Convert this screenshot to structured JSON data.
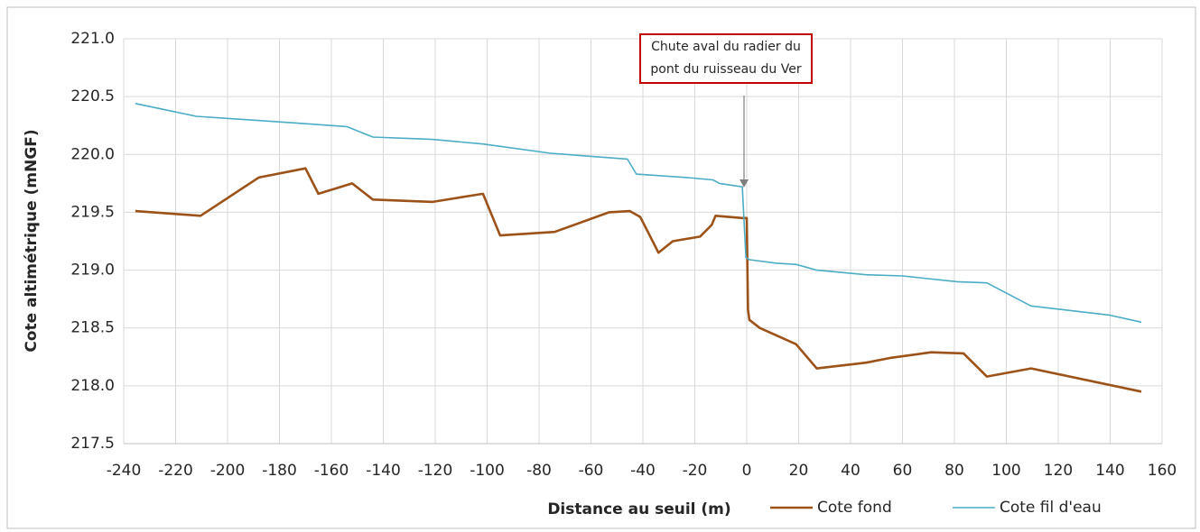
{
  "chart_data": {
    "type": "line",
    "y_label": "Cote altimétrique (mNGF)",
    "x_label": "Distance au seuil (m)",
    "annotation": "Chute aval du radier du pont du ruisseau du Ver",
    "xlim": [
      -240,
      160
    ],
    "xticks": [
      -240,
      -220,
      -200,
      -180,
      -160,
      -140,
      -120,
      -100,
      -80,
      -60,
      -40,
      -20,
      0,
      20,
      40,
      60,
      80,
      100,
      120,
      140,
      160
    ],
    "ylim": [
      217.5,
      221.0
    ],
    "yticks": [
      217.5,
      {
        "value": 218,
        "label": "218.0"
      },
      218.5,
      {
        "value": 219,
        "label": "219.0"
      },
      219.5,
      {
        "value": 220,
        "label": "220.0"
      },
      220.5,
      {
        "value": 221,
        "label": "221.0"
      }
    ],
    "grid": true,
    "legend": "bottom",
    "series": [
      {
        "name": "Cote fond",
        "color": "#9c5219",
        "x": [
          -235.5,
          -210.4,
          -188,
          -170,
          -165,
          -152,
          -144,
          -121,
          -101.6,
          -95,
          -74,
          -53,
          -45,
          -41,
          -34,
          -28.5,
          -18,
          -13.5,
          -12,
          -1.7,
          0,
          0.5,
          1,
          5,
          19,
          27,
          46,
          55,
          71,
          83.5,
          92.5,
          109.5,
          152
        ],
        "values": [
          219.51,
          219.47,
          219.8,
          219.88,
          219.66,
          219.75,
          219.61,
          219.59,
          219.66,
          219.3,
          219.33,
          219.5,
          219.51,
          219.46,
          219.15,
          219.25,
          219.29,
          219.39,
          219.47,
          219.45,
          219.45,
          218.66,
          218.57,
          218.5,
          218.36,
          218.15,
          218.2,
          218.24,
          218.29,
          218.28,
          218.08,
          218.15,
          217.95
        ]
      },
      {
        "name": "Cote fil d'eau",
        "color": "#4bacc6",
        "x": [
          -235.5,
          -212,
          -173,
          -154,
          -144,
          -121,
          -101.6,
          -75.5,
          -46,
          -42.5,
          -23,
          -13,
          -10.5,
          -1.7,
          -0.3,
          1,
          11.5,
          19,
          27,
          46,
          60,
          81,
          92.5,
          109.5,
          140,
          152
        ],
        "values": [
          220.44,
          220.33,
          220.27,
          220.24,
          220.15,
          220.13,
          220.09,
          220.01,
          219.96,
          219.83,
          219.8,
          219.78,
          219.75,
          219.72,
          219.11,
          219.09,
          219.06,
          219.05,
          219.0,
          218.96,
          218.95,
          218.9,
          218.89,
          218.69,
          218.61,
          218.55
        ]
      }
    ]
  }
}
